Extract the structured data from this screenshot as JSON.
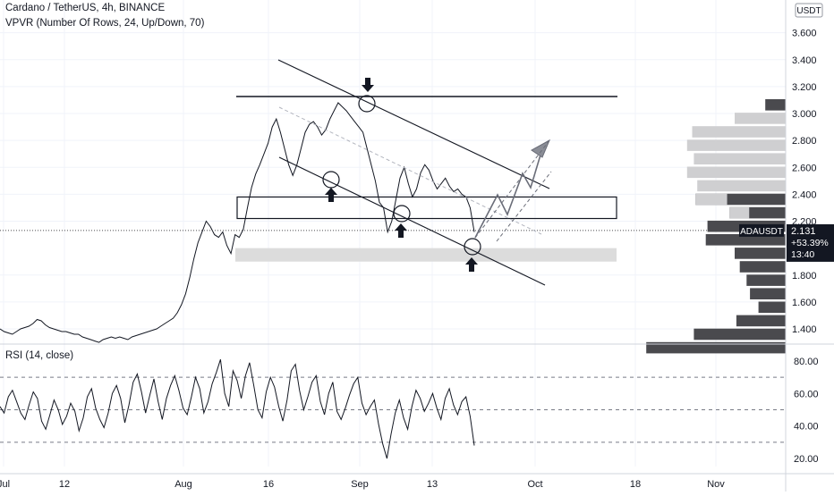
{
  "header": {
    "symbol_line": "Cardano / TetherUS, 4h, BINANCE",
    "indicator_line": "VPVR (Number Of Rows, 24, Up/Down, 70)",
    "currency_badge": "USDT"
  },
  "rsi_panel": {
    "label": "RSI (14, close)"
  },
  "price_badge": {
    "ticker": "ADAUSDT",
    "price": "2.131",
    "change": "+53.39%",
    "countdown": "13:40"
  },
  "colors": {
    "accent": "#131722",
    "badge_dark": "#131722",
    "volume_light": "#cfcfd1",
    "volume_dark": "#4a4a4e",
    "zone_fill": "#dcdcdc",
    "grid": "#f0f3fa",
    "line": "#131722"
  },
  "chart_data": [
    {
      "type": "line",
      "title": "",
      "x_ticks": [
        "Jul",
        "12",
        "Aug",
        "16",
        "Sep",
        "13",
        "Oct",
        "18",
        "Nov"
      ],
      "y_ticks": [
        "3.600",
        "3.400",
        "3.200",
        "3.000",
        "2.800",
        "2.600",
        "2.400",
        "2.200",
        "1.800",
        "1.600",
        "1.400"
      ],
      "ylim": [
        1.3,
        3.65
      ],
      "series": [
        {
          "values": [
            1.4,
            1.38,
            1.37,
            1.36,
            1.38,
            1.4,
            1.41,
            1.42,
            1.44,
            1.47,
            1.46,
            1.43,
            1.41,
            1.4,
            1.39,
            1.38,
            1.38,
            1.37,
            1.36,
            1.36,
            1.34,
            1.33,
            1.32,
            1.31,
            1.3,
            1.32,
            1.33,
            1.34,
            1.33,
            1.34,
            1.33,
            1.32,
            1.34,
            1.35,
            1.36,
            1.37,
            1.38,
            1.39,
            1.4,
            1.42,
            1.44,
            1.46,
            1.48,
            1.52,
            1.58,
            1.66,
            1.78,
            1.92,
            2.04,
            2.12,
            2.2,
            2.16,
            2.1,
            2.08,
            2.12,
            2.02,
            1.96,
            2.1,
            2.08,
            2.14,
            2.3,
            2.45,
            2.55,
            2.62,
            2.7,
            2.78,
            2.9,
            2.96,
            2.86,
            2.74,
            2.62,
            2.54,
            2.62,
            2.74,
            2.86,
            2.92,
            2.94,
            2.9,
            2.84,
            2.88,
            2.96,
            3.02,
            3.08,
            3.05,
            3.02,
            2.98,
            2.94,
            2.9,
            2.86,
            2.74,
            2.62,
            2.5,
            2.34,
            2.3,
            2.12,
            2.2,
            2.36,
            2.52,
            2.6,
            2.48,
            2.38,
            2.44,
            2.56,
            2.62,
            2.58,
            2.5,
            2.44,
            2.48,
            2.52,
            2.46,
            2.42,
            2.44,
            2.4,
            2.38,
            2.3,
            2.12
          ]
        }
      ],
      "channel_zone": {
        "upper": 2.38,
        "lower": 2.22
      },
      "support_zone": {
        "upper": 2.0,
        "lower": 1.9
      },
      "resistance_level": 3.11
    },
    {
      "type": "bar",
      "title": "VPVR (Number Of Rows, 24, Up/Down, 70)",
      "categories": [
        "3.100",
        "3.000",
        "2.900",
        "2.800",
        "2.700",
        "2.600",
        "2.500",
        "2.400",
        "2.300",
        "2.200",
        "2.100",
        "2.000",
        "1.900",
        "1.800",
        "1.700",
        "1.600",
        "1.500",
        "1.400",
        "1.300"
      ],
      "series": [
        {
          "values": [
            0.12,
            0.3,
            0.55,
            0.58,
            0.54,
            0.58,
            0.52,
            0.53,
            0.33,
            0.46,
            0.47,
            0.3,
            0.27,
            0.23,
            0.21,
            0.16,
            0.29,
            0.54,
            0.82
          ]
        }
      ]
    },
    {
      "type": "line",
      "title": "RSI (14, close)",
      "y_ticks": [
        "80.00",
        "60.00",
        "40.00",
        "20.00"
      ],
      "ylim": [
        16,
        86
      ],
      "series": [
        {
          "values": [
            52,
            48,
            58,
            62,
            55,
            48,
            44,
            53,
            61,
            57,
            43,
            38,
            47,
            56,
            50,
            41,
            46,
            54,
            49,
            37,
            45,
            58,
            63,
            51,
            44,
            39,
            48,
            60,
            65,
            57,
            42,
            53,
            67,
            72,
            61,
            48,
            59,
            69,
            55,
            44,
            57,
            65,
            71,
            62,
            51,
            47,
            58,
            70,
            63,
            48,
            55,
            66,
            73,
            81,
            60,
            52,
            74,
            68,
            57,
            71,
            79,
            65,
            50,
            45,
            61,
            70,
            64,
            52,
            43,
            56,
            74,
            78,
            62,
            50,
            58,
            67,
            71,
            55,
            47,
            60,
            67,
            49,
            44,
            51,
            59,
            66,
            70,
            54,
            47,
            52,
            56,
            41,
            29,
            20,
            35,
            48,
            56,
            45,
            38,
            52,
            62,
            57,
            49,
            54,
            60,
            51,
            44,
            57,
            63,
            53,
            47,
            55,
            58,
            46,
            28
          ]
        }
      ]
    }
  ]
}
